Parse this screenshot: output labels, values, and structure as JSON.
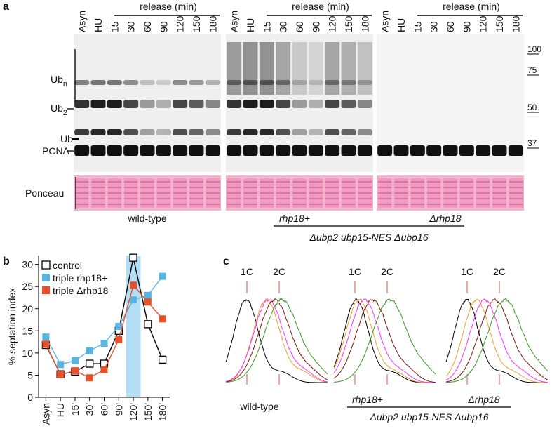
{
  "panel_a": {
    "label": "a",
    "blots": [
      {
        "lanes": [
          "Asyn",
          "HU",
          "15",
          "30",
          "60",
          "90",
          "120",
          "150",
          "180"
        ],
        "release": "release (min)",
        "strain": "wild-type"
      },
      {
        "lanes": [
          "Asyn",
          "HU",
          "15",
          "30",
          "60",
          "90",
          "120",
          "150",
          "180"
        ],
        "release": "release (min)",
        "strain": "rhp18+"
      },
      {
        "lanes": [
          "Asyn",
          "HU",
          "15",
          "30",
          "60",
          "90",
          "120",
          "150",
          "180"
        ],
        "release": "release (min)",
        "strain": "Δrhp18"
      }
    ],
    "markers": [
      100,
      75,
      50,
      37
    ],
    "bands": {
      "ubn": {
        "main": "Ub",
        "sub": "n"
      },
      "ub2": {
        "main": "Ub",
        "sub": "2"
      },
      "ub": "Ub",
      "pcna": "PCNA",
      "ponceau": "Ponceau"
    },
    "group": "Δubp2 ubp15-NES Δubp16"
  },
  "chart_data": {
    "type": "line",
    "label": "b",
    "y_label": "% septation index",
    "categories": [
      "Asyn",
      "HU",
      "15'",
      "30'",
      "60'",
      "90'",
      "120'",
      "150'",
      "180'"
    ],
    "series": [
      {
        "name": "control",
        "color": "#000000",
        "values": [
          11.8,
          5.2,
          5.8,
          7.6,
          7.6,
          15,
          31.5,
          16.5,
          8.5
        ]
      },
      {
        "name": "triple rhp18+",
        "color": "#5ab4e0",
        "values": [
          13.6,
          7.4,
          8.3,
          10.5,
          12.2,
          16,
          22,
          23,
          27.3
        ]
      },
      {
        "name": "triple Δrhp18",
        "color": "#e8502a",
        "values": [
          12,
          5.1,
          6,
          4.4,
          6.2,
          13,
          25.3,
          21.5,
          17.7
        ]
      }
    ],
    "ylim": [
      0,
      32
    ],
    "yticks": [
      0,
      5,
      10,
      15,
      20,
      25,
      30
    ],
    "highlight_index": 6,
    "highlight_color": "#b3def4"
  },
  "panel_c": {
    "label": "c",
    "groups": [
      {
        "peaks": [
          "1C",
          "2C"
        ],
        "strain": "wild-type"
      },
      {
        "peaks": [
          "1C",
          "2C"
        ],
        "strain": "rhp18+"
      },
      {
        "peaks": [
          "1C",
          "2C"
        ],
        "strain": "Δrhp18"
      }
    ],
    "group": "Δubp2 ubp15-NES Δubp16"
  }
}
